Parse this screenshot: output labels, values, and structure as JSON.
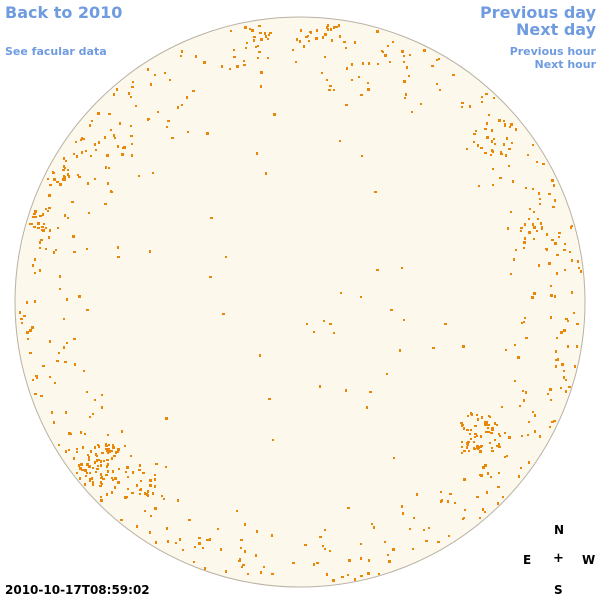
{
  "nav": {
    "back": "Back to 2010",
    "facular": "See facular data",
    "prev_day": "Previous day",
    "next_day": "Next day",
    "prev_hour": "Previous hour",
    "next_hour": "Next hour"
  },
  "compass": {
    "north": "N",
    "east": "E",
    "center": "+",
    "west": "W",
    "south": "S"
  },
  "timestamp": "2010-10-17T08:59:02",
  "colors": {
    "link": "#6f9be0",
    "disk_fill": "#fdf8ec",
    "disk_stroke": "#b9b1a4",
    "faculae": "#e8870a"
  },
  "icons": {
    "solar_disk": "sun-disk-icon",
    "compass_center": "plus-icon"
  }
}
